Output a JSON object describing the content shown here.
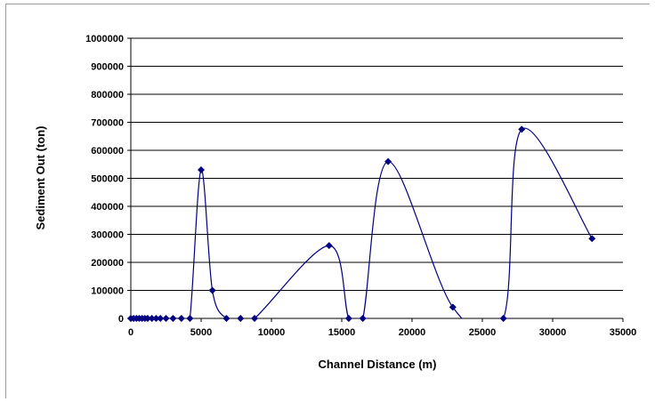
{
  "chart_data": {
    "type": "scatter",
    "title": "",
    "xlabel": "Channel Distance (m)",
    "ylabel": "Sediment Out (ton)",
    "xlim": [
      0,
      35000
    ],
    "ylim": [
      0,
      1000000
    ],
    "x_ticks": [
      "0",
      "5000",
      "10000",
      "15000",
      "20000",
      "25000",
      "30000",
      "35000"
    ],
    "y_ticks": [
      "0",
      "100000",
      "200000",
      "300000",
      "400000",
      "500000",
      "600000",
      "700000",
      "800000",
      "900000",
      "1000000"
    ],
    "grid": "horizontal",
    "legend": "none",
    "series_color": "#000080",
    "marker": "diamond",
    "smoothed_line": true,
    "points": [
      [
        0,
        0
      ],
      [
        200,
        0
      ],
      [
        400,
        0
      ],
      [
        600,
        0
      ],
      [
        800,
        0
      ],
      [
        1000,
        0
      ],
      [
        1200,
        0
      ],
      [
        1500,
        0
      ],
      [
        1800,
        0
      ],
      [
        2100,
        0
      ],
      [
        2500,
        0
      ],
      [
        3000,
        0
      ],
      [
        3600,
        0
      ],
      [
        4200,
        0
      ],
      [
        5000,
        530000
      ],
      [
        5800,
        100000
      ],
      [
        6800,
        0
      ],
      [
        7800,
        0
      ],
      [
        8800,
        0
      ],
      [
        14100,
        260000
      ],
      [
        15500,
        0
      ],
      [
        16500,
        0
      ],
      [
        18300,
        560000
      ],
      [
        22900,
        40000
      ],
      [
        26500,
        0
      ],
      [
        27800,
        675000
      ],
      [
        32800,
        285000
      ]
    ]
  }
}
